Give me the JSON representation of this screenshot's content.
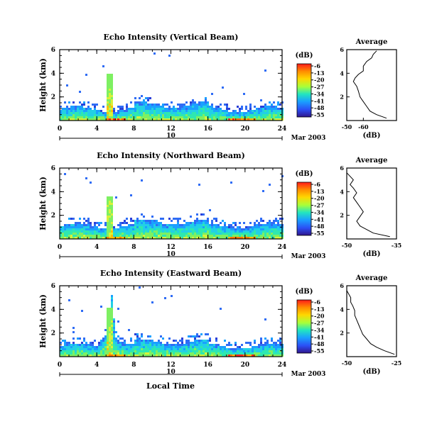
{
  "chart_data": {
    "type": "heatmap",
    "xlabel": "Local Time",
    "colorbar": {
      "unit": "(dB)",
      "ticks": [
        -6,
        -13,
        -20,
        -27,
        -34,
        -41,
        -48,
        -55
      ],
      "colors": [
        "#ff2020",
        "#ff8c00",
        "#ffd700",
        "#a8ff3a",
        "#22e5c0",
        "#1aa0ff",
        "#2b4ff5",
        "#30168c"
      ]
    },
    "date_main": "10",
    "date_sub": "Mar 2003",
    "panels": [
      {
        "title": "Echo Intensity (Vertical Beam)",
        "ylabel": "Height (km)",
        "xlim": [
          0,
          24
        ],
        "ylim": [
          0,
          6
        ],
        "xticks": [
          0,
          4,
          8,
          12,
          16,
          20,
          24
        ],
        "yticks": [
          2,
          4,
          6
        ],
        "profile_x": [
          -74,
          -68,
          -64,
          -62,
          -60,
          -58,
          -57,
          -56,
          -54,
          -55,
          -57,
          -60,
          -60,
          -62,
          -65,
          -66,
          -68
        ],
        "profile_y": [
          0.2,
          0.5,
          0.8,
          1.2,
          1.6,
          2.0,
          2.5,
          2.9,
          3.3,
          3.6,
          3.9,
          4.2,
          4.6,
          5.0,
          5.3,
          5.6,
          5.9
        ],
        "profile_xlim": [
          -50,
          -80
        ],
        "profile_xticks": [
          -50,
          -60
        ],
        "profile_xlabels": [
          "-50",
          "-60"
        ]
      },
      {
        "title": "Echo Intensity (Northward Beam)",
        "ylabel": "Height (km)",
        "xlim": [
          0,
          24
        ],
        "ylim": [
          0,
          6
        ],
        "xticks": [
          0,
          4,
          8,
          12,
          16,
          20,
          24
        ],
        "yticks": [
          2,
          4,
          6
        ],
        "profile_x": [
          -37,
          -42,
          -44,
          -46,
          -47,
          -46,
          -45,
          -46,
          -47,
          -48,
          -47,
          -48,
          -49,
          -48,
          -49,
          -50,
          -50
        ],
        "profile_y": [
          0.2,
          0.5,
          0.8,
          1.1,
          1.5,
          1.9,
          2.3,
          2.7,
          3.1,
          3.5,
          3.9,
          4.3,
          4.6,
          5.0,
          5.3,
          5.6,
          5.9
        ],
        "profile_xlim": [
          -50,
          -35
        ],
        "profile_xticks": [
          -50,
          -35
        ],
        "profile_xlabels": [
          "-50",
          "-35"
        ]
      },
      {
        "title": "Echo Intensity (Eastward Beam)",
        "ylabel": "Height (km)",
        "xlim": [
          0,
          24
        ],
        "ylim": [
          0,
          6
        ],
        "xticks": [
          0,
          4,
          8,
          12,
          16,
          20,
          24
        ],
        "yticks": [
          2,
          4,
          6
        ],
        "profile_x": [
          -26,
          -31,
          -35,
          -38,
          -40,
          -42,
          -43,
          -44,
          -45,
          -46,
          -46,
          -47,
          -48,
          -48,
          -49,
          -50,
          -50
        ],
        "profile_y": [
          0.2,
          0.5,
          0.8,
          1.1,
          1.5,
          1.9,
          2.3,
          2.7,
          3.1,
          3.5,
          3.9,
          4.3,
          4.6,
          5.0,
          5.3,
          5.6,
          5.9
        ],
        "profile_xlim": [
          -50,
          -25
        ],
        "profile_xticks": [
          -50,
          -25
        ],
        "profile_xlabels": [
          "-50",
          "-25"
        ]
      }
    ],
    "profile_title": "Average",
    "profile_xlabel": "(dB)"
  }
}
